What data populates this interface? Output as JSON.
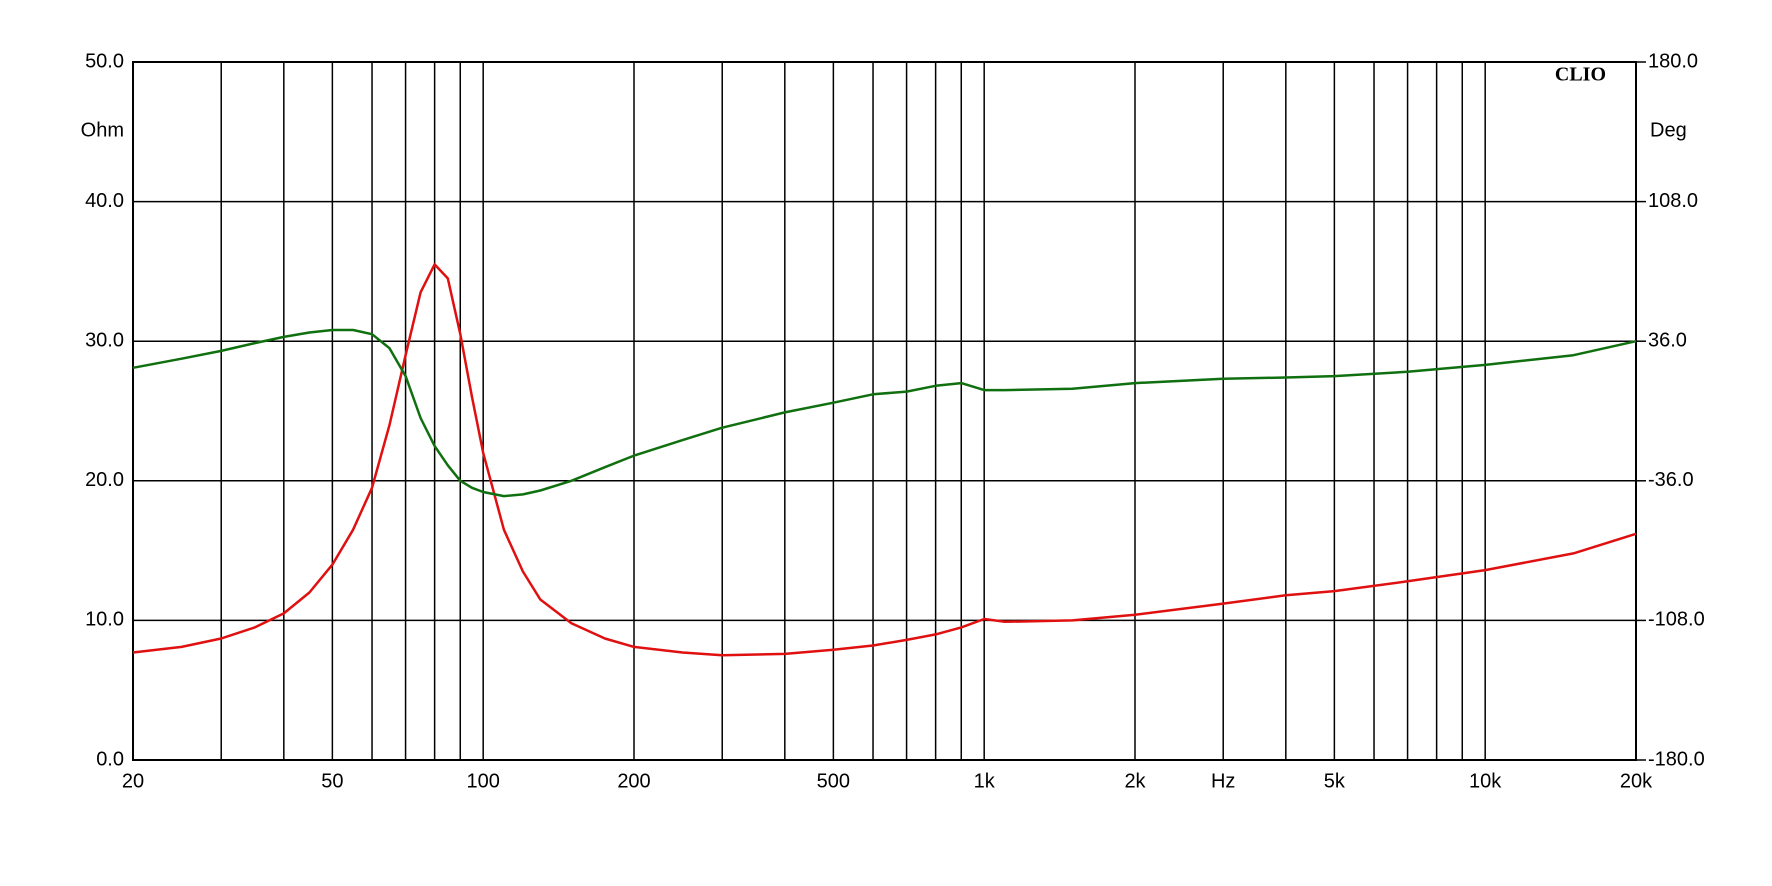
{
  "chart_data": {
    "type": "line",
    "brand": "CLIO",
    "ylabel": "Ohm",
    "y2label": "Deg",
    "xscale": "log",
    "grid": true,
    "xlim": [
      20,
      20000
    ],
    "xticks": [
      20,
      50,
      100,
      200,
      500,
      {
        "value": 1000,
        "label": "1k"
      },
      {
        "value": 2000,
        "label": "2k"
      },
      {
        "value": 3000,
        "label": "Hz"
      },
      {
        "value": 5000,
        "label": "5k"
      },
      {
        "value": 10000,
        "label": "10k"
      },
      {
        "value": 20000,
        "label": "20k"
      }
    ],
    "xminor": [
      30,
      40,
      60,
      70,
      80,
      90,
      300,
      400,
      600,
      700,
      800,
      900,
      4000,
      6000,
      7000,
      8000,
      9000
    ],
    "ylim": [
      0,
      50
    ],
    "yticks": [
      {
        "value": 0,
        "label": "0.0"
      },
      {
        "value": 10,
        "label": "10.0"
      },
      {
        "value": 20,
        "label": "20.0"
      },
      {
        "value": 30,
        "label": "30.0"
      },
      {
        "value": 40,
        "label": "40.0"
      },
      {
        "value": 50,
        "label": "50.0"
      }
    ],
    "y2lim": [
      -180,
      180
    ],
    "y2ticks": [
      {
        "value": -180,
        "label": "-180.0"
      },
      {
        "value": -108,
        "label": "-108.0"
      },
      {
        "value": -36,
        "label": "-36.0"
      },
      {
        "value": 36,
        "label": "36.0"
      },
      {
        "value": 108,
        "label": "108.0"
      },
      {
        "value": 180,
        "label": "180.0"
      }
    ],
    "x": [
      20,
      25,
      30,
      35,
      40,
      45,
      50,
      55,
      60,
      65,
      70,
      75,
      80,
      85,
      90,
      95,
      100,
      110,
      120,
      130,
      150,
      175,
      200,
      250,
      300,
      400,
      500,
      600,
      700,
      800,
      900,
      1000,
      1100,
      1500,
      2000,
      3000,
      4000,
      5000,
      7000,
      10000,
      15000,
      20000
    ],
    "series": [
      {
        "color": "#e01010",
        "values": [
          7.7,
          8.1,
          8.7,
          9.5,
          10.5,
          12.0,
          14,
          16.5,
          19.5,
          24,
          29,
          33.5,
          35.5,
          34.5,
          30.5,
          26,
          22,
          16.5,
          13.5,
          11.5,
          9.8,
          8.7,
          8.1,
          7.7,
          7.5,
          7.6,
          7.9,
          8.2,
          8.6,
          9,
          9.5,
          10.1,
          9.9,
          10,
          10.4,
          11.2,
          11.8,
          12.1,
          12.8,
          13.6,
          14.8,
          16.2
        ]
      },
      {
        "color": "#107010",
        "axis": "y2",
        "values": [
          22.3,
          27,
          31,
          35,
          38.2,
          40.5,
          41.8,
          41.8,
          39.6,
          32.4,
          18,
          -3.6,
          -18,
          -28,
          -36,
          -39.6,
          -41.8,
          -43.9,
          -43,
          -41,
          -36,
          -29,
          -23,
          -15,
          -8.6,
          -0.7,
          4.3,
          8.6,
          10,
          13,
          14.4,
          10.8,
          10.8,
          11.5,
          14.4,
          16.6,
          17.3,
          18,
          20.2,
          23.8,
          28.8,
          36
        ]
      }
    ]
  }
}
